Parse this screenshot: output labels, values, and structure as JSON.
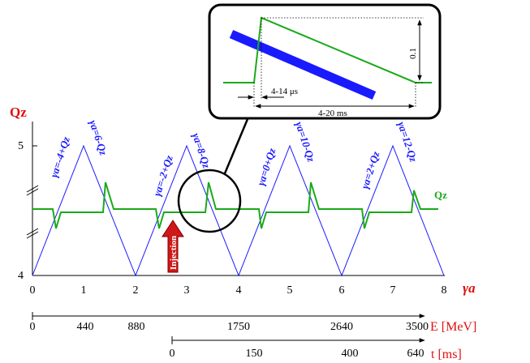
{
  "axes": {
    "y_label": "Qz",
    "y_ticks": [
      "5",
      "4"
    ],
    "x_label": "γa",
    "x_ticks": [
      "0",
      "1",
      "2",
      "3",
      "4",
      "5",
      "6",
      "7",
      "8"
    ],
    "energy_label": "E [MeV]",
    "energy_ticks": [
      "0",
      "440",
      "880",
      "1750",
      "2640",
      "3500"
    ],
    "time_label": "t [ms]",
    "time_ticks": [
      "0",
      "150",
      "400",
      "640"
    ]
  },
  "resonances": [
    "γa=-4+Qz",
    "γa=6-Qz",
    "γa=-2+Qz",
    "γa=8-Qz",
    "γa=0+Qz",
    "γa=10-Qz",
    "γa=2+Qz",
    "γa=12-Qz"
  ],
  "curve_label": "Qz",
  "injection_label": "Injection",
  "inset": {
    "amplitude": "0.1",
    "rise_time": "4-14 μs",
    "fall_time": "4-20 ms"
  },
  "colors": {
    "resonance_lines": "#1a1aff",
    "tune_curve": "#1aaa1a",
    "labels": "#e01010"
  }
}
